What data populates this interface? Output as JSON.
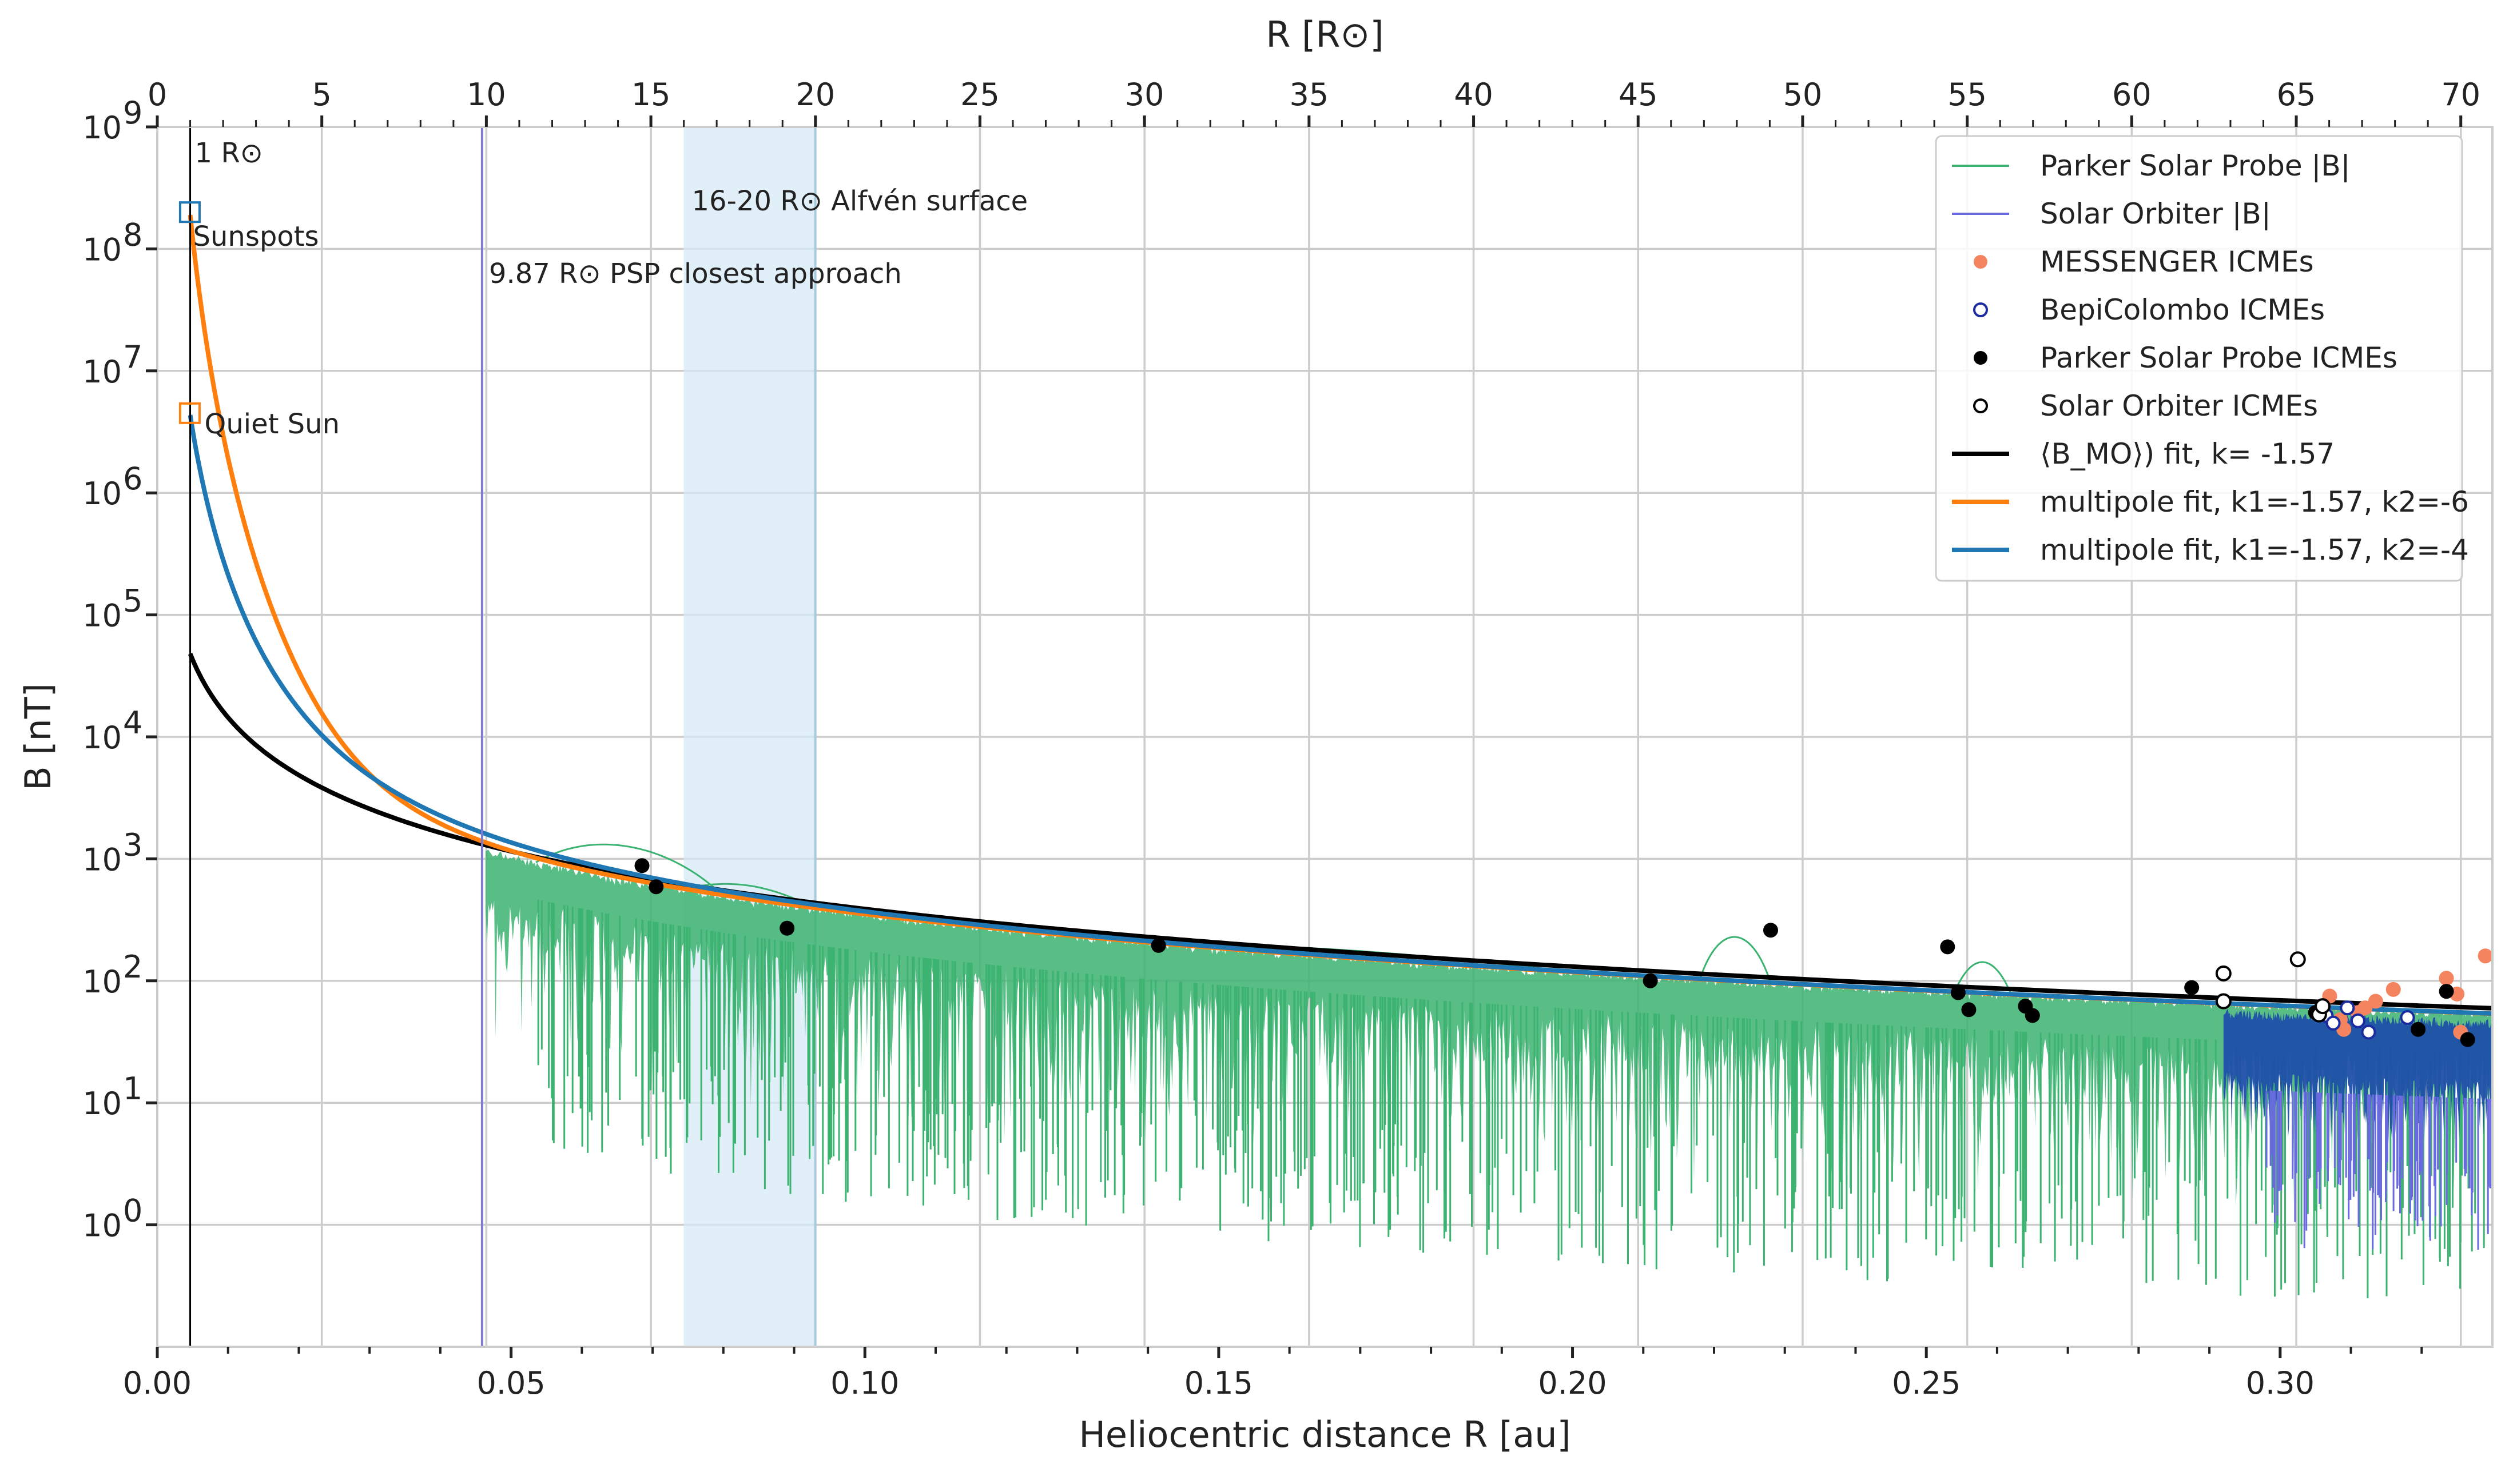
{
  "chart_data": {
    "type": "line",
    "xlabel": "Heliocentric distance R [au]",
    "ylabel": "B [nT]",
    "top_xlabel": "R [R⊙]",
    "xlim": [
      0.0,
      0.33
    ],
    "ylim_log10": [
      -1,
      9
    ],
    "x_ticks": [
      {
        "value": 0.0,
        "label": "0.00"
      },
      {
        "value": 0.05,
        "label": "0.05"
      },
      {
        "value": 0.1,
        "label": "0.10"
      },
      {
        "value": 0.15,
        "label": "0.15"
      },
      {
        "value": 0.2,
        "label": "0.20"
      },
      {
        "value": 0.25,
        "label": "0.25"
      },
      {
        "value": 0.3,
        "label": "0.30"
      }
    ],
    "top_ticks": [
      {
        "value": 0,
        "label": "0"
      },
      {
        "value": 5,
        "label": "5"
      },
      {
        "value": 10,
        "label": "10"
      },
      {
        "value": 15,
        "label": "15"
      },
      {
        "value": 20,
        "label": "20"
      },
      {
        "value": 25,
        "label": "25"
      },
      {
        "value": 30,
        "label": "30"
      },
      {
        "value": 35,
        "label": "35"
      },
      {
        "value": 40,
        "label": "40"
      },
      {
        "value": 45,
        "label": "45"
      },
      {
        "value": 50,
        "label": "50"
      },
      {
        "value": 55,
        "label": "55"
      },
      {
        "value": 60,
        "label": "60"
      },
      {
        "value": 65,
        "label": "65"
      },
      {
        "value": 70,
        "label": "70"
      }
    ],
    "y_ticks": [
      {
        "exp": 0,
        "label": "10",
        "sup": "0"
      },
      {
        "exp": 1,
        "label": "10",
        "sup": "1"
      },
      {
        "exp": 2,
        "label": "10",
        "sup": "2"
      },
      {
        "exp": 3,
        "label": "10",
        "sup": "3"
      },
      {
        "exp": 4,
        "label": "10",
        "sup": "4"
      },
      {
        "exp": 5,
        "label": "10",
        "sup": "5"
      },
      {
        "exp": 6,
        "label": "10",
        "sup": "6"
      },
      {
        "exp": 7,
        "label": "10",
        "sup": "7"
      },
      {
        "exp": 8,
        "label": "10",
        "sup": "8"
      },
      {
        "exp": 9,
        "label": "10",
        "sup": "9"
      }
    ],
    "reference_lines": {
      "one_rsun_au": 0.00465,
      "psp_closest_au": 0.0459,
      "alfven_band_au": [
        0.0744,
        0.093
      ]
    },
    "annotations": {
      "one_rsun": "1 R⊙",
      "sunspots": "Sunspots",
      "quiet_sun": "Quiet Sun",
      "psp_closest": "9.87 R⊙ PSP closest approach",
      "alfven": "16-20 R⊙  Alfvén surface"
    },
    "markers": {
      "sunspots": {
        "x": 0.0046,
        "y": 200000000
      },
      "quiet_sun": {
        "x": 0.0046,
        "y": 4500000
      }
    },
    "fits": [
      {
        "name": "⟨B_MO⟩) fit, k= -1.57",
        "k": -1.57,
        "B0": 48000,
        "color": "#000000"
      },
      {
        "name": "multipole fit, k1=-1.57, k2=-6",
        "k1": -1.57,
        "k2": -6,
        "color": "#ff7f0e"
      },
      {
        "name": "multipole fit, k1=-1.57, k2=-4",
        "k1": -1.57,
        "k2": -4,
        "color": "#1f77b4"
      }
    ],
    "psp_icmes": [
      [
        0.0685,
        880
      ],
      [
        0.0705,
        590
      ],
      [
        0.089,
        270
      ],
      [
        0.1415,
        195
      ],
      [
        0.211,
        100
      ],
      [
        0.228,
        260
      ],
      [
        0.253,
        190
      ],
      [
        0.2545,
        80
      ],
      [
        0.256,
        58
      ],
      [
        0.264,
        62
      ],
      [
        0.265,
        52
      ],
      [
        0.2875,
        88
      ],
      [
        0.305,
        55
      ],
      [
        0.3195,
        40
      ],
      [
        0.3235,
        82
      ],
      [
        0.3265,
        33
      ]
    ],
    "solo_icmes": [
      [
        0.292,
        115
      ],
      [
        0.292,
        68
      ],
      [
        0.3025,
        150
      ],
      [
        0.3055,
        53
      ],
      [
        0.306,
        62
      ]
    ],
    "messenger_icmes": [
      [
        0.307,
        75
      ],
      [
        0.3085,
        48
      ],
      [
        0.309,
        40
      ],
      [
        0.311,
        55
      ],
      [
        0.312,
        60
      ],
      [
        0.3135,
        68
      ],
      [
        0.316,
        85
      ],
      [
        0.3235,
        105
      ],
      [
        0.325,
        78
      ],
      [
        0.3255,
        38
      ],
      [
        0.329,
        160
      ]
    ],
    "bepi_icmes": [
      [
        0.3065,
        52
      ],
      [
        0.3075,
        45
      ],
      [
        0.3095,
        60
      ],
      [
        0.311,
        47
      ],
      [
        0.3125,
        38
      ],
      [
        0.318,
        50
      ]
    ],
    "psp_range_au": [
      0.0459,
      0.33
    ],
    "solo_range_au": [
      0.292,
      0.33
    ],
    "legend": [
      {
        "label": "Parker Solar Probe |B|",
        "kind": "thinline",
        "color": "#3cb371"
      },
      {
        "label": "Solar Orbiter |B|",
        "kind": "thinline",
        "color": "#6a6adf"
      },
      {
        "label": "MESSENGER ICMEs",
        "kind": "dot",
        "color": "#f4845f"
      },
      {
        "label": "BepiColombo ICMEs",
        "kind": "ring",
        "color": "#1a2a9f"
      },
      {
        "label": "Parker Solar Probe ICMEs",
        "kind": "dot",
        "color": "#000000"
      },
      {
        "label": "Solar Orbiter ICMEs",
        "kind": "ring",
        "color": "#000000"
      },
      {
        "label": "⟨B_MO⟩) fit, k= -1.57",
        "kind": "thickline",
        "color": "#000000"
      },
      {
        "label": "multipole fit, k1=-1.57, k2=-6",
        "kind": "thickline",
        "color": "#ff7f0e"
      },
      {
        "label": "multipole fit, k1=-1.57, k2=-4",
        "kind": "thickline",
        "color": "#1f77b4"
      }
    ],
    "colors": {
      "psp": "#3cb371",
      "solo": "#6a6adf",
      "solo_fill": "#1f4fa8",
      "grid": "#cccccc",
      "alfven": "#d6eaf5",
      "psp_line": "#7b7bd6"
    }
  }
}
